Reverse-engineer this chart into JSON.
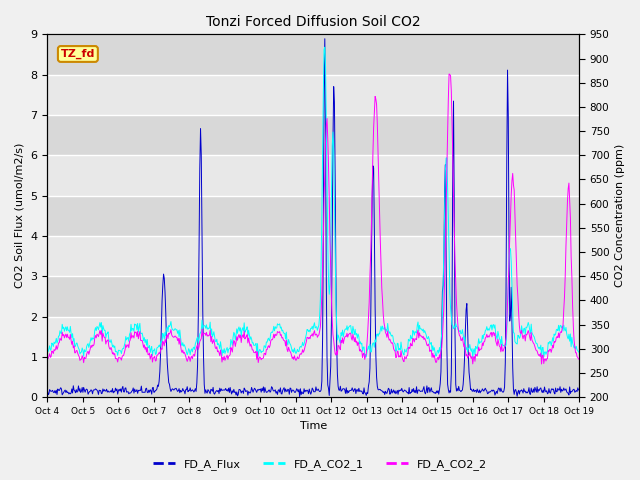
{
  "title": "Tonzi Forced Diffusion Soil CO2",
  "xlabel": "Time",
  "ylabel_left": "CO2 Soil Flux (umol/m2/s)",
  "ylabel_right": "CO2 Concentration (ppm)",
  "ylim_left": [
    0.0,
    9.0
  ],
  "ylim_right": [
    200,
    950
  ],
  "yticks_left": [
    0.0,
    1.0,
    2.0,
    3.0,
    4.0,
    5.0,
    6.0,
    7.0,
    8.0,
    9.0
  ],
  "yticks_right": [
    200,
    250,
    300,
    350,
    400,
    450,
    500,
    550,
    600,
    650,
    700,
    750,
    800,
    850,
    900,
    950
  ],
  "xtick_labels": [
    "Oct 4",
    "Oct 5",
    "Oct 6",
    "Oct 7",
    "Oct 8",
    "Oct 9",
    "Oct 10",
    "Oct 11",
    "Oct 12",
    "Oct 13",
    "Oct 14",
    "Oct 15",
    "Oct 16",
    "Oct 17",
    "Oct 18",
    "Oct 19"
  ],
  "color_flux": "#0000cc",
  "color_co2_1": "#00ffff",
  "color_co2_2": "#ff00ff",
  "legend_label_flux": "FD_A_Flux",
  "legend_label_co2_1": "FD_A_CO2_1",
  "legend_label_co2_2": "FD_A_CO2_2",
  "tag_text": "TZ_fd",
  "tag_bg": "#ffff99",
  "tag_border": "#cc8800",
  "tag_text_color": "#cc0000",
  "bg_color": "#f0f0f0",
  "plot_bg": "#e8e8e8",
  "figsize": [
    6.4,
    4.8
  ],
  "dpi": 100
}
